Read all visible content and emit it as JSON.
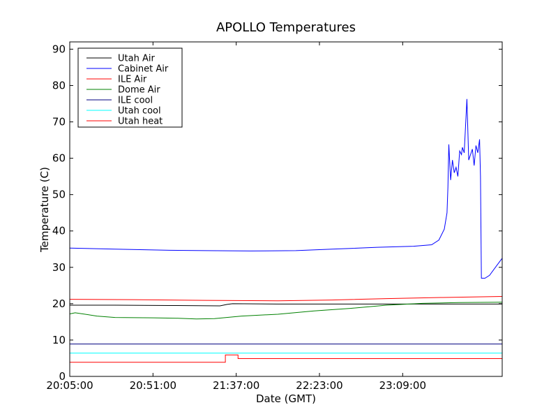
{
  "chart_data": {
    "type": "line",
    "title": "APOLLO Temperatures",
    "xlabel": "Date (GMT)",
    "ylabel": "Temperature (C)",
    "xlim": [
      "20:05:00",
      "00:04:00"
    ],
    "ylim": [
      0,
      92
    ],
    "x_ticks": [
      "20:05:00",
      "20:51:00",
      "21:37:00",
      "22:23:00",
      "23:09:00"
    ],
    "y_ticks": [
      0,
      10,
      20,
      30,
      40,
      50,
      60,
      70,
      80,
      90
    ],
    "grid": false,
    "legend_position": "top-left",
    "series": [
      {
        "name": "Utah Air",
        "color": "#000000",
        "points": [
          [
            "20:05:00",
            19.6
          ],
          [
            "20:30:00",
            19.6
          ],
          [
            "21:00:00",
            19.5
          ],
          [
            "21:28:00",
            19.4
          ],
          [
            "21:32:00",
            19.8
          ],
          [
            "21:35:00",
            20.0
          ],
          [
            "22:00:00",
            19.9
          ],
          [
            "22:30:00",
            19.9
          ],
          [
            "23:00:00",
            19.9
          ],
          [
            "23:30:00",
            19.9
          ],
          [
            "00:04:00",
            19.9
          ]
        ]
      },
      {
        "name": "Cabinet Air",
        "color": "#0000ff",
        "points": [
          [
            "20:05:00",
            35.3
          ],
          [
            "20:30:00",
            35.0
          ],
          [
            "21:00:00",
            34.7
          ],
          [
            "21:20:00",
            34.6
          ],
          [
            "21:45:00",
            34.5
          ],
          [
            "22:10:00",
            34.6
          ],
          [
            "22:30:00",
            35.0
          ],
          [
            "22:55:00",
            35.5
          ],
          [
            "23:15:00",
            35.8
          ],
          [
            "23:25:00",
            36.2
          ],
          [
            "23:29:00",
            37.5
          ],
          [
            "23:32:00",
            40.5
          ],
          [
            "23:33:30",
            45.0
          ],
          [
            "23:34:00",
            52.0
          ],
          [
            "23:34:30",
            63.8
          ],
          [
            "23:35:30",
            54.0
          ],
          [
            "23:36:30",
            59.5
          ],
          [
            "23:37:30",
            56.0
          ],
          [
            "23:38:30",
            57.5
          ],
          [
            "23:39:30",
            55.0
          ],
          [
            "23:40:30",
            62.0
          ],
          [
            "23:41:30",
            61.0
          ],
          [
            "23:42:00",
            63.0
          ],
          [
            "23:43:00",
            61.5
          ],
          [
            "23:44:30",
            76.3
          ],
          [
            "23:45:30",
            59.5
          ],
          [
            "23:46:30",
            61.0
          ],
          [
            "23:47:30",
            62.5
          ],
          [
            "23:48:30",
            58.0
          ],
          [
            "23:49:30",
            63.5
          ],
          [
            "23:50:30",
            61.5
          ],
          [
            "23:51:30",
            65.2
          ],
          [
            "23:52:00",
            55.0
          ],
          [
            "23:52:30",
            27.0
          ],
          [
            "23:54:30",
            27.0
          ],
          [
            "23:57:00",
            27.8
          ],
          [
            "00:01:00",
            30.5
          ],
          [
            "00:04:00",
            32.5
          ]
        ]
      },
      {
        "name": "ILE Air",
        "color": "#ff0000",
        "points": [
          [
            "20:05:00",
            21.2
          ],
          [
            "20:40:00",
            21.1
          ],
          [
            "21:20:00",
            20.9
          ],
          [
            "22:00:00",
            20.8
          ],
          [
            "22:30:00",
            21.0
          ],
          [
            "23:00:00",
            21.4
          ],
          [
            "23:30:00",
            21.7
          ],
          [
            "00:04:00",
            22.0
          ]
        ]
      },
      {
        "name": "Dome Air",
        "color": "#008000",
        "points": [
          [
            "20:05:00",
            17.2
          ],
          [
            "20:08:00",
            17.5
          ],
          [
            "20:20:00",
            16.6
          ],
          [
            "20:30:00",
            16.2
          ],
          [
            "20:51:00",
            16.1
          ],
          [
            "21:05:00",
            16.0
          ],
          [
            "21:15:00",
            15.8
          ],
          [
            "21:25:00",
            15.9
          ],
          [
            "21:40:00",
            16.6
          ],
          [
            "22:00:00",
            17.1
          ],
          [
            "22:20:00",
            18.0
          ],
          [
            "22:40:00",
            18.7
          ],
          [
            "23:00:00",
            19.6
          ],
          [
            "23:20:00",
            20.1
          ],
          [
            "23:40:00",
            20.3
          ],
          [
            "00:04:00",
            20.4
          ]
        ]
      },
      {
        "name": "ILE cool",
        "color": "#000080",
        "points": [
          [
            "20:05:00",
            8.9
          ],
          [
            "00:04:00",
            8.9
          ]
        ]
      },
      {
        "name": "Utah cool",
        "color": "#00ffff",
        "points": [
          [
            "20:05:00",
            6.4
          ],
          [
            "00:04:00",
            6.4
          ]
        ]
      },
      {
        "name": "Utah heat",
        "color": "#ff0000",
        "points": [
          [
            "20:05:00",
            3.9
          ],
          [
            "21:31:00",
            3.9
          ],
          [
            "21:31:00",
            5.9
          ],
          [
            "21:38:00",
            5.9
          ],
          [
            "21:38:00",
            4.9
          ],
          [
            "00:04:00",
            4.9
          ]
        ]
      }
    ]
  }
}
